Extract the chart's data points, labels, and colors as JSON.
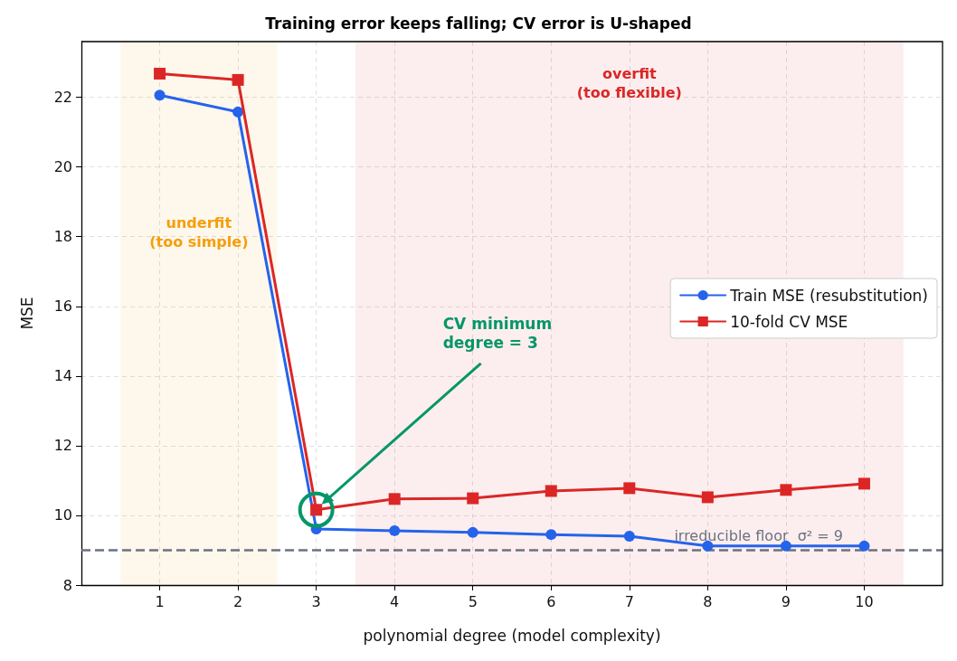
{
  "chart_data": {
    "type": "line",
    "title": "Training error keeps falling; CV error is U-shaped",
    "xlabel": "polynomial degree (model complexity)",
    "ylabel": "MSE",
    "x": [
      1,
      2,
      3,
      4,
      5,
      6,
      7,
      8,
      9,
      10
    ],
    "series": [
      {
        "name": "Train MSE (resubstitution)",
        "color": "#2563eb",
        "marker": "circle",
        "values": [
          22.06,
          21.58,
          9.61,
          9.56,
          9.51,
          9.45,
          9.4,
          9.12,
          9.12,
          9.12
        ]
      },
      {
        "name": "10-fold CV MSE",
        "color": "#dc2626",
        "marker": "square",
        "values": [
          22.68,
          22.5,
          10.16,
          10.47,
          10.49,
          10.7,
          10.78,
          10.52,
          10.73,
          10.91
        ]
      }
    ],
    "xlim": [
      0,
      11
    ],
    "xticks": [
      1,
      2,
      3,
      4,
      5,
      6,
      7,
      8,
      9,
      10
    ],
    "ylim": [
      8,
      23.6
    ],
    "yticks": [
      8,
      10,
      12,
      14,
      16,
      18,
      20,
      22
    ],
    "grid": true,
    "legend": "right",
    "line_style": "solid",
    "ref_lines": [
      {
        "axis": "y",
        "value": 9,
        "label": "irreducible floor  σ² = 9",
        "color": "#6b7280",
        "line_style": "dashed"
      }
    ],
    "bands": [
      {
        "axis": "x",
        "from": 0.5,
        "to": 2.5,
        "label": "underfit\n(too simple)",
        "color": "#f59e0b"
      },
      {
        "axis": "x",
        "from": 3.5,
        "to": 10.5,
        "label": "overfit\n(too flexible)",
        "color": "#dc2626"
      }
    ],
    "annotations": [
      "CV minimum\ndegree = 3"
    ]
  }
}
